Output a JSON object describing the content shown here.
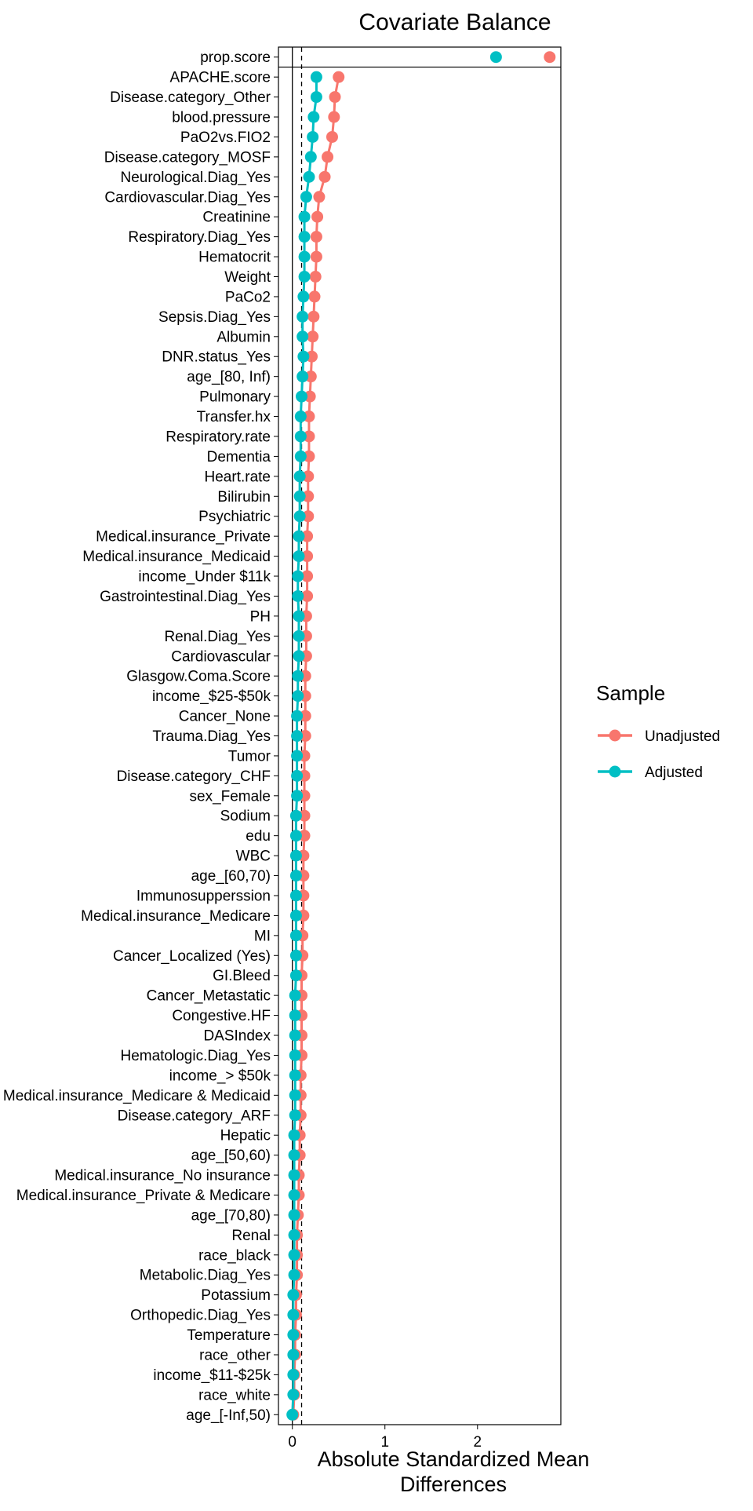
{
  "chart_data": {
    "type": "scatter",
    "title": "Covariate Balance",
    "xlabel": "Absolute Standardized Mean\nDifferences",
    "ylabel": "",
    "xlim": [
      -0.15,
      2.9
    ],
    "xticks": [
      0,
      1,
      2
    ],
    "threshold_line": 0.1,
    "zero_line": 0,
    "grid": false,
    "legend": {
      "title": "Sample",
      "placement": "right"
    },
    "categories": [
      "prop.score",
      "APACHE.score",
      "Disease.category_Other",
      "blood.pressure",
      "PaO2vs.FIO2",
      "Disease.category_MOSF",
      "Neurological.Diag_Yes",
      "Cardiovascular.Diag_Yes",
      "Creatinine",
      "Respiratory.Diag_Yes",
      "Hematocrit",
      "Weight",
      "PaCo2",
      "Sepsis.Diag_Yes",
      "Albumin",
      "DNR.status_Yes",
      "age_[80, Inf)",
      "Pulmonary",
      "Transfer.hx",
      "Respiratory.rate",
      "Dementia",
      "Heart.rate",
      "Bilirubin",
      "Psychiatric",
      "Medical.insurance_Private",
      "Medical.insurance_Medicaid",
      "income_Under $11k",
      "Gastrointestinal.Diag_Yes",
      "PH",
      "Renal.Diag_Yes",
      "Cardiovascular",
      "Glasgow.Coma.Score",
      "income_$25-$50k",
      "Cancer_None",
      "Trauma.Diag_Yes",
      "Tumor",
      "Disease.category_CHF",
      "sex_Female",
      "Sodium",
      "edu",
      "WBC",
      "age_[60,70)",
      "Immunosupperssion",
      "Medical.insurance_Medicare",
      "MI",
      "Cancer_Localized (Yes)",
      "GI.Bleed",
      "Cancer_Metastatic",
      "Congestive.HF",
      "DASIndex",
      "Hematologic.Diag_Yes",
      "income_> $50k",
      "Medical.insurance_Medicare & Medicaid",
      "Disease.category_ARF",
      "Hepatic",
      "age_[50,60)",
      "Medical.insurance_No insurance",
      "Medical.insurance_Private & Medicare",
      "age_[70,80)",
      "Renal",
      "race_black",
      "Metabolic.Diag_Yes",
      "Potassium",
      "Orthopedic.Diag_Yes",
      "Temperature",
      "race_other",
      "income_$11-$25k",
      "race_white",
      "age_[-Inf,50)"
    ],
    "series": [
      {
        "name": "Unadjusted",
        "color": "#F8766D",
        "values": [
          2.78,
          0.5,
          0.46,
          0.45,
          0.43,
          0.38,
          0.35,
          0.29,
          0.27,
          0.26,
          0.26,
          0.25,
          0.24,
          0.23,
          0.22,
          0.21,
          0.2,
          0.19,
          0.18,
          0.18,
          0.18,
          0.17,
          0.17,
          0.17,
          0.16,
          0.16,
          0.16,
          0.16,
          0.15,
          0.15,
          0.15,
          0.14,
          0.14,
          0.14,
          0.14,
          0.13,
          0.13,
          0.13,
          0.13,
          0.13,
          0.12,
          0.12,
          0.12,
          0.12,
          0.11,
          0.11,
          0.1,
          0.1,
          0.1,
          0.1,
          0.1,
          0.09,
          0.09,
          0.09,
          0.08,
          0.08,
          0.07,
          0.07,
          0.06,
          0.05,
          0.05,
          0.05,
          0.04,
          0.04,
          0.03,
          0.03,
          0.02,
          0.02,
          0.01
        ]
      },
      {
        "name": "Adjusted",
        "color": "#00BFC4",
        "values": [
          2.2,
          0.26,
          0.26,
          0.23,
          0.22,
          0.2,
          0.18,
          0.15,
          0.13,
          0.13,
          0.13,
          0.13,
          0.12,
          0.11,
          0.11,
          0.12,
          0.11,
          0.1,
          0.09,
          0.09,
          0.09,
          0.08,
          0.08,
          0.08,
          0.07,
          0.07,
          0.06,
          0.06,
          0.07,
          0.07,
          0.07,
          0.06,
          0.06,
          0.05,
          0.05,
          0.05,
          0.05,
          0.05,
          0.04,
          0.04,
          0.04,
          0.04,
          0.04,
          0.04,
          0.04,
          0.04,
          0.04,
          0.03,
          0.03,
          0.03,
          0.03,
          0.03,
          0.03,
          0.03,
          0.02,
          0.02,
          0.02,
          0.02,
          0.02,
          0.02,
          0.02,
          0.02,
          0.01,
          0.01,
          0.01,
          0.01,
          0.01,
          0.01,
          0.0
        ]
      }
    ]
  }
}
